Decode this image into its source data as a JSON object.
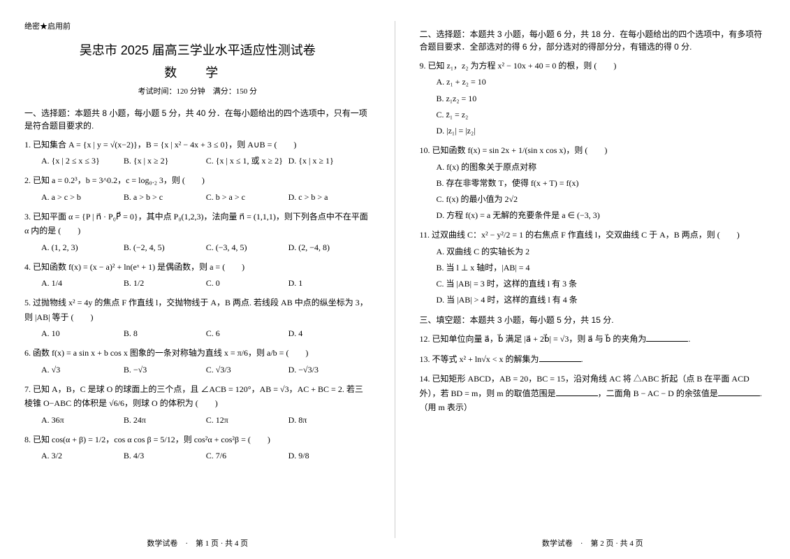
{
  "top_note": "绝密★启用前",
  "title_line1": "吴忠市 2025 届高三学业水平适应性测试卷",
  "title_line2": "数  学",
  "time_info": "考试时间：120 分钟　满分：150 分",
  "section1_head": "一、选择题：本题共 8 小题，每小题 5 分，共 40 分．在每小题给出的四个选项中，只有一项是符合题目要求的.",
  "q1": "1. 已知集合 A = {x | y = √(x−2)}，B = {x | x² − 4x + 3 ≤ 0}，则 A∪B = (　　)",
  "q1_opts": [
    "A. {x | 2 ≤ x ≤ 3}",
    "B. {x | x ≥ 2}",
    "C. {x | x ≤ 1, 或 x ≥ 2}",
    "D. {x | x ≥ 1}"
  ],
  "q2": "2. 已知 a = 0.2³，b = 3^0.2，c = log₀.₂ 3，则 (　　)",
  "q2_opts": [
    "A. a > c > b",
    "B. a > b > c",
    "C. b > a > c",
    "D. c > b > a"
  ],
  "q3": "3. 已知平面 α = {P | n⃗ · P₀P⃗ = 0}，其中点 P₀(1,2,3)，法向量 n⃗ = (1,1,1)，则下列各点中不在平面 α 内的是 (　　)",
  "q3_opts": [
    "A. (1, 2, 3)",
    "B. (−2, 4, 5)",
    "C. (−3, 4, 5)",
    "D. (2, −4, 8)"
  ],
  "q4": "4. 已知函数 f(x) = (x − a)² + ln(eˣ + 1) 是偶函数，则 a = (　　)",
  "q4_opts": [
    "A. 1/4",
    "B. 1/2",
    "C. 0",
    "D. 1"
  ],
  "q5": "5. 过抛物线 x² = 4y 的焦点 F 作直线 l，交抛物线于 A，B 两点. 若线段 AB 中点的纵坐标为 3，则 |AB| 等于 (　　)",
  "q5_opts": [
    "A. 10",
    "B. 8",
    "C. 6",
    "D. 4"
  ],
  "q6": "6. 函数 f(x) = a sin x + b cos x 图象的一条对称轴为直线 x = π/6，则 a/b = (　　)",
  "q6_opts": [
    "A. √3",
    "B. −√3",
    "C. √3/3",
    "D. −√3/3"
  ],
  "q7": "7. 已知 A，B，C 是球 O 的球面上的三个点，且 ∠ACB = 120°，AB = √3，AC + BC = 2. 若三棱锥 O−ABC 的体积是 √6/6，则球 O 的体积为 (　　)",
  "q7_opts": [
    "A. 36π",
    "B. 24π",
    "C. 12π",
    "D. 8π"
  ],
  "q8": "8. 已知 cos(α + β) = 1/2，cos α cos β = 5/12，则 cos²α + cos²β = (　　)",
  "q8_opts": [
    "A. 3/2",
    "B. 4/3",
    "C. 7/6",
    "D. 9/8"
  ],
  "footer1": "数学试卷　·　第 1 页 · 共 4 页",
  "section2_head": "二、选择题：本题共 3 小题，每小题 6 分，共 18 分．在每小题给出的四个选项中，有多项符合题目要求．全部选对的得 6 分，部分选对的得部分分，有错选的得 0 分.",
  "q9": "9. 已知 z₁，z₂ 为方程 x² − 10x + 40 = 0 的根，则 (　　)",
  "q9_opts": [
    "A. z₁ + z₂ = 10",
    "B. z₁z₂ = 10",
    "C. z̄₁ = z₂",
    "D. |z₁| = |z₂|"
  ],
  "q10": "10. 已知函数 f(x) = sin 2x + 1/(sin x cos x)，则 (　　)",
  "q10_opts": [
    "A. f(x) 的图象关于原点对称",
    "B. 存在非零常数 T，使得 f(x + T) = f(x)",
    "C. f(x) 的最小值为 2√2",
    "D. 方程 f(x) = a 无解的充要条件是 a ∈ (−3, 3)"
  ],
  "q11": "11. 过双曲线 C：x² − y²/2 = 1 的右焦点 F 作直线 l，交双曲线 C 于 A，B 两点，则 (　　)",
  "q11_opts": [
    "A. 双曲线 C 的实轴长为 2",
    "B. 当 l ⊥ x 轴时，|AB| = 4",
    "C. 当 |AB| = 3 时，这样的直线 l 有 3 条",
    "D. 当 |AB| > 4 时，这样的直线 l 有 4 条"
  ],
  "section3_head": "三、填空题：本题共 3 小题，每小题 5 分，共 15 分.",
  "q12": "12. 已知单位向量 a⃗，b⃗ 满足 |a⃗ + 2b⃗| = √3，则 a⃗ 与 b⃗ 的夹角为",
  "q13": "13. 不等式 x² + ln√x < x 的解集为",
  "q14_a": "14. 已知矩形 ABCD，AB = 20，BC = 15，沿对角线 AC 将 △ABC 折起（点 B 在平面 ACD 外），若 BD = m，则 m 的取值范围是",
  "q14_b": "，二面角 B − AC − D 的余弦值是",
  "q14_c": ".（用 m 表示）",
  "footer2": "数学试卷　·　第 2 页 · 共 4 页"
}
